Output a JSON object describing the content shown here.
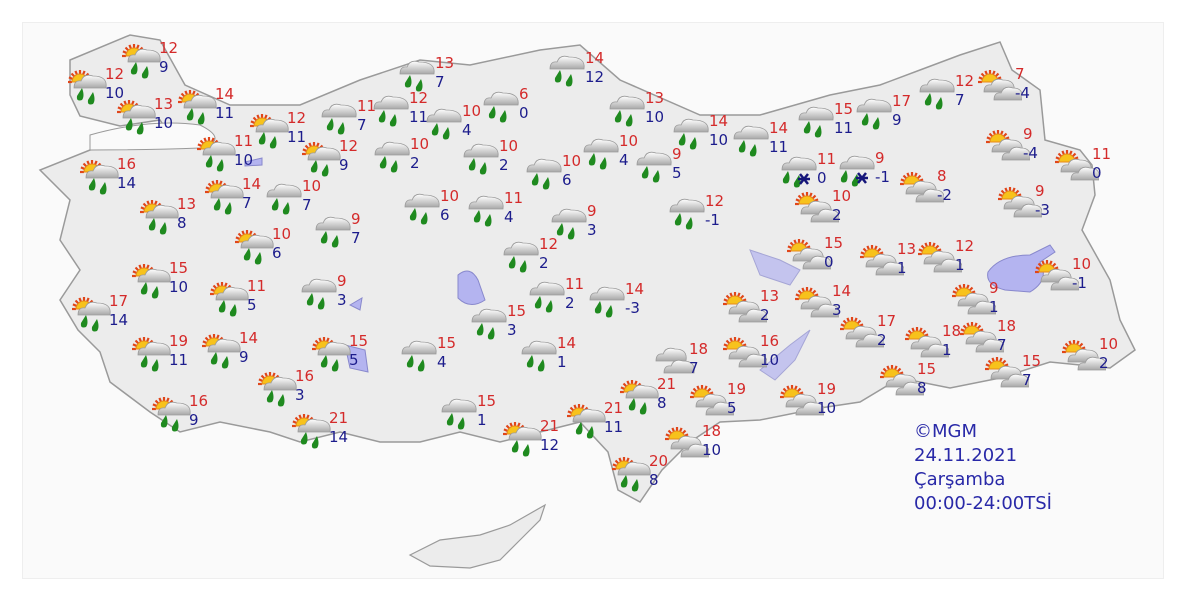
{
  "credit": {
    "source": "©MGM",
    "date": "24.11.2021",
    "day": "Çarşamba",
    "period": "00:00-24:00TSİ"
  },
  "colors": {
    "max_temp": "#d42a2a",
    "min_temp": "#1c1c8c",
    "land": "#ececec",
    "water": "#b4b4f0"
  },
  "icon_types": {
    "P": "sun-cloud-rain-icon",
    "R": "cloud-rain-icon",
    "S": "sun-cloud-icon",
    "X": "cloud-rain-snow-icon",
    "C": "cloudy-icon"
  },
  "markers": [
    {
      "icon": "P",
      "max": "12",
      "min": "9"
    },
    {
      "icon": "P",
      "max": "12",
      "min": "10"
    },
    {
      "icon": "P",
      "max": "13",
      "min": "10"
    },
    {
      "icon": "P",
      "max": "14",
      "min": "11"
    },
    {
      "icon": "P",
      "max": "12",
      "min": "11"
    },
    {
      "icon": "P",
      "max": "11",
      "min": "10"
    },
    {
      "icon": "P",
      "max": "12",
      "min": "9"
    },
    {
      "icon": "P",
      "max": "16",
      "min": "14"
    },
    {
      "icon": "P",
      "max": "14",
      "min": "7"
    },
    {
      "icon": "P",
      "max": "13",
      "min": "8"
    },
    {
      "icon": "P",
      "max": "10",
      "min": "6"
    },
    {
      "icon": "P",
      "max": "15",
      "min": "10"
    },
    {
      "icon": "P",
      "max": "11",
      "min": "5"
    },
    {
      "icon": "P",
      "max": "17",
      "min": "14"
    },
    {
      "icon": "P",
      "max": "19",
      "min": "11"
    },
    {
      "icon": "P",
      "max": "14",
      "min": "9"
    },
    {
      "icon": "P",
      "max": "16",
      "min": "3"
    },
    {
      "icon": "P",
      "max": "16",
      "min": "9"
    },
    {
      "icon": "P",
      "max": "21",
      "min": "14"
    },
    {
      "icon": "P",
      "max": "15",
      "min": "5"
    },
    {
      "icon": "R",
      "max": "13",
      "min": "7"
    },
    {
      "icon": "R",
      "max": "11",
      "min": "7"
    },
    {
      "icon": "R",
      "max": "12",
      "min": "11"
    },
    {
      "icon": "R",
      "max": "10",
      "min": "4"
    },
    {
      "icon": "R",
      "max": "6",
      "min": "0"
    },
    {
      "icon": "R",
      "max": "10",
      "min": "2"
    },
    {
      "icon": "R",
      "max": "10",
      "min": "7"
    },
    {
      "icon": "R",
      "max": "9",
      "min": "7"
    },
    {
      "icon": "R",
      "max": "10",
      "min": "6"
    },
    {
      "icon": "R",
      "max": "10",
      "min": "2"
    },
    {
      "icon": "R",
      "max": "11",
      "min": "4"
    },
    {
      "icon": "R",
      "max": "10",
      "min": "6"
    },
    {
      "icon": "R",
      "max": "9",
      "min": "3"
    },
    {
      "icon": "R",
      "max": "12",
      "min": "2"
    },
    {
      "icon": "R",
      "max": "9",
      "min": "3"
    },
    {
      "icon": "R",
      "max": "11",
      "min": "2"
    },
    {
      "icon": "R",
      "max": "14",
      "min": "-3"
    },
    {
      "icon": "R",
      "max": "15",
      "min": "3"
    },
    {
      "icon": "R",
      "max": "15",
      "min": "4"
    },
    {
      "icon": "R",
      "max": "14",
      "min": "1"
    },
    {
      "icon": "R",
      "max": "15",
      "min": "1"
    },
    {
      "icon": "R",
      "max": "14",
      "min": "12"
    },
    {
      "icon": "R",
      "max": "13",
      "min": "10"
    },
    {
      "icon": "R",
      "max": "10",
      "min": "4"
    },
    {
      "icon": "R",
      "max": "9",
      "min": "5"
    },
    {
      "icon": "R",
      "max": "12",
      "min": "-1"
    },
    {
      "icon": "R",
      "max": "14",
      "min": "10"
    },
    {
      "icon": "R",
      "max": "14",
      "min": "11"
    },
    {
      "icon": "R",
      "max": "15",
      "min": "11"
    },
    {
      "icon": "R",
      "max": "17",
      "min": "9"
    },
    {
      "icon": "R",
      "max": "12",
      "min": "7"
    },
    {
      "icon": "X",
      "max": "11",
      "min": "0"
    },
    {
      "icon": "X",
      "max": "9",
      "min": "-1"
    },
    {
      "icon": "S",
      "max": "7",
      "min": "-4"
    },
    {
      "icon": "S",
      "max": "9",
      "min": "-4"
    },
    {
      "icon": "S",
      "max": "11",
      "min": "0"
    },
    {
      "icon": "S",
      "max": "8",
      "min": "-2"
    },
    {
      "icon": "S",
      "max": "10",
      "min": "2"
    },
    {
      "icon": "S",
      "max": "9",
      "min": "-3"
    },
    {
      "icon": "S",
      "max": "15",
      "min": "0"
    },
    {
      "icon": "S",
      "max": "13",
      "min": "1"
    },
    {
      "icon": "S",
      "max": "12",
      "min": "1"
    },
    {
      "icon": "S",
      "max": "10",
      "min": "-1"
    },
    {
      "icon": "S",
      "max": "9",
      "min": "1"
    },
    {
      "icon": "S",
      "max": "13",
      "min": "2"
    },
    {
      "icon": "S",
      "max": "14",
      "min": "3"
    },
    {
      "icon": "S",
      "max": "17",
      "min": "2"
    },
    {
      "icon": "S",
      "max": "18",
      "min": "1"
    },
    {
      "icon": "S",
      "max": "18",
      "min": "7"
    },
    {
      "icon": "S",
      "max": "10",
      "min": "2"
    },
    {
      "icon": "S",
      "max": "15",
      "min": "7"
    },
    {
      "icon": "S",
      "max": "16",
      "min": "10"
    },
    {
      "icon": "S",
      "max": "15",
      "min": "8"
    },
    {
      "icon": "S",
      "max": "19",
      "min": "5"
    },
    {
      "icon": "S",
      "max": "19",
      "min": "10"
    },
    {
      "icon": "S",
      "max": "18",
      "min": "10"
    },
    {
      "icon": "C",
      "max": "18",
      "min": "7"
    },
    {
      "icon": "P",
      "max": "21",
      "min": "8"
    },
    {
      "icon": "P",
      "max": "21",
      "min": "11"
    },
    {
      "icon": "P",
      "max": "21",
      "min": "12"
    },
    {
      "icon": "P",
      "max": "20",
      "min": "8"
    }
  ]
}
